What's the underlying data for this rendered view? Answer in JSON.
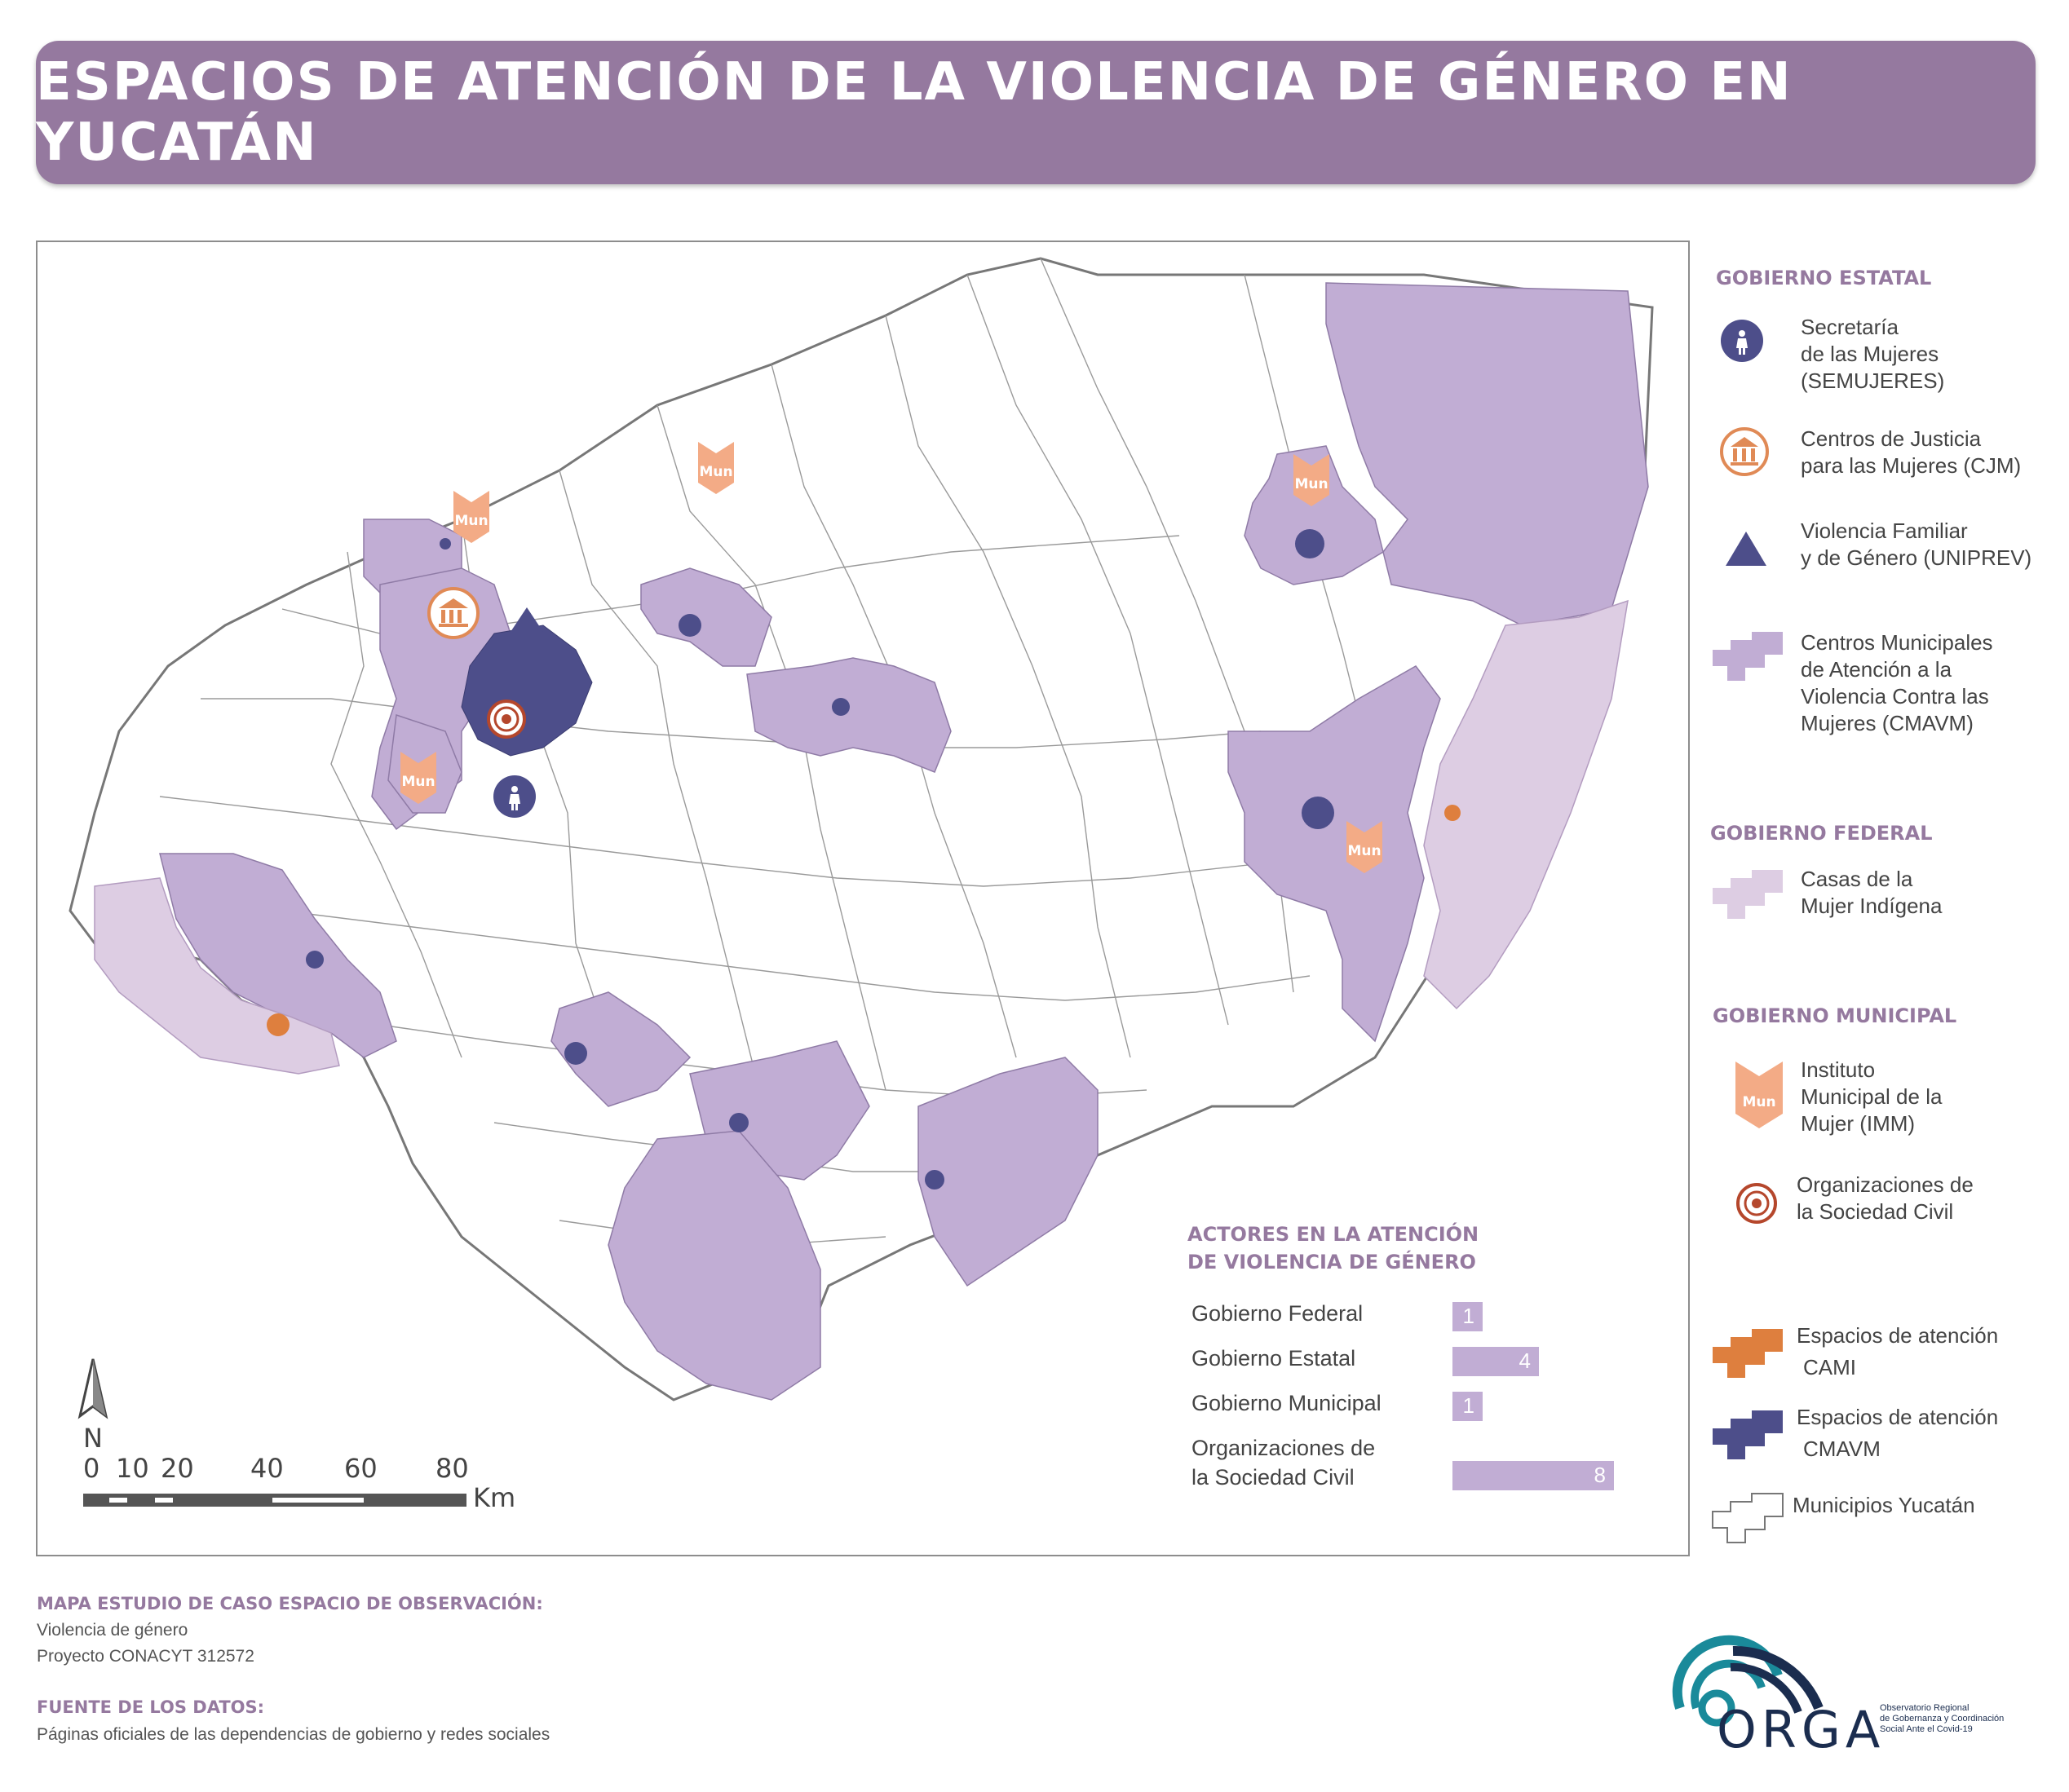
{
  "title": "ESPACIOS DE ATENCIÓN DE LA VIOLENCIA DE GÉNERO EN YUCATÁN",
  "colors": {
    "banner": "#95799f",
    "cmavm_area": "#c1add4",
    "indigenous_area": "#ddcde3",
    "cmavm_space": "#4d4e8a",
    "cami_space": "#de7f3e",
    "imm": "#f3ab86",
    "cjm": "#e08a56",
    "semujeres": "#4d4e8a",
    "civil": "#b5472c"
  },
  "map": {
    "mun_label": "Mun",
    "north_label": "N",
    "scale": {
      "ticks": [
        "0",
        "10",
        "20",
        "40",
        "60",
        "80"
      ],
      "unit": "Km"
    }
  },
  "legend": {
    "gobierno_estatal": "GOBIERNO ESTATAL",
    "semujeres": [
      "Secretaría",
      "de las Mujeres",
      "(SEMUJERES)"
    ],
    "cjm": [
      "Centros de Justicia",
      "para las Mujeres (CJM)"
    ],
    "uniprev": [
      "Violencia Familiar",
      "y de Género (UNIPREV)"
    ],
    "cmavm": [
      "Centros Municipales",
      "de Atención a la",
      "Violencia Contra las",
      "Mujeres (CMAVM)"
    ],
    "gobierno_federal": "GOBIERNO FEDERAL",
    "casas": [
      "Casas de la",
      "Mujer Indígena"
    ],
    "gobierno_municipal": "GOBIERNO MUNICIPAL",
    "imm": [
      "Instituto",
      "Municipal de la",
      "Mujer (IMM)"
    ],
    "osc": [
      "Organizaciones de",
      "la Sociedad Civil"
    ],
    "cami": [
      "Espacios de atención",
      "CAMI"
    ],
    "cmavm_space": [
      "Espacios de atención",
      "CMAVM"
    ],
    "municipios": "Municipios Yucatán"
  },
  "chart_data": {
    "type": "bar",
    "title": [
      "ACTORES EN LA ATENCIÓN",
      "DE VIOLENCIA DE GÉNERO"
    ],
    "categories": [
      "Gobierno Federal",
      "Gobierno Estatal",
      "Gobierno Municipal",
      "Organizaciones de la Sociedad Civil"
    ],
    "category_lines": [
      [
        "Gobierno Federal"
      ],
      [
        "Gobierno Estatal"
      ],
      [
        "Gobierno Municipal"
      ],
      [
        "Organizaciones de",
        "la Sociedad Civil"
      ]
    ],
    "values": [
      1,
      4,
      1,
      8
    ],
    "value_labels": [
      "1",
      "4",
      "1",
      "8"
    ],
    "xlim": [
      0,
      8
    ],
    "color": "#c1add4"
  },
  "footer": {
    "study_head": "MAPA ESTUDIO DE CASO ESPACIO DE OBSERVACIÓN:",
    "study_lines": [
      "Violencia de género",
      "Proyecto CONACYT 312572"
    ],
    "source_head": "FUENTE DE LOS DATOS:",
    "source_text": "Páginas oficiales de las dependencias de gobierno y redes sociales"
  },
  "logo": {
    "name": "ORGA",
    "subtitle": [
      "Observatorio Regional",
      "de Gobernanza y Coordinación",
      "Social Ante el Covid-19"
    ]
  }
}
